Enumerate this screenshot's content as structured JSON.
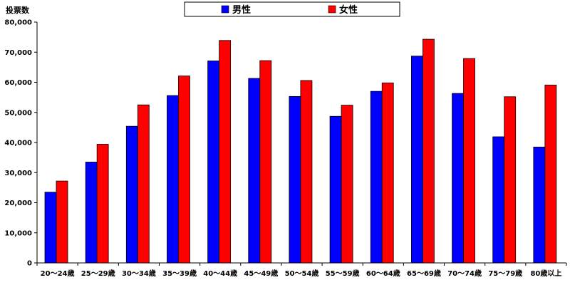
{
  "chart_data": {
    "type": "bar",
    "ylabel": "投票数",
    "ylim": [
      0,
      80000
    ],
    "yticks": [
      "0",
      "10,000",
      "20,000",
      "30,000",
      "40,000",
      "50,000",
      "60,000",
      "70,000",
      "80,000"
    ],
    "grid": false,
    "legend_position": "top-center",
    "categories": [
      "20～24歳",
      "25～29歳",
      "30～34歳",
      "35～39歳",
      "40～44歳",
      "45～49歳",
      "50～54歳",
      "55～59歳",
      "60～64歳",
      "65～69歳",
      "70～74歳",
      "75～79歳",
      "80歳以上"
    ],
    "series": [
      {
        "name": "男性",
        "color": "#0000FF",
        "values": [
          23500,
          33500,
          45400,
          55600,
          67100,
          61300,
          55300,
          48700,
          57000,
          68700,
          56300,
          41900,
          38500
        ]
      },
      {
        "name": "女性",
        "color": "#FF0000",
        "values": [
          27200,
          39400,
          52500,
          62100,
          73900,
          67200,
          60600,
          52400,
          59800,
          74300,
          67900,
          55200,
          59100
        ]
      }
    ]
  }
}
